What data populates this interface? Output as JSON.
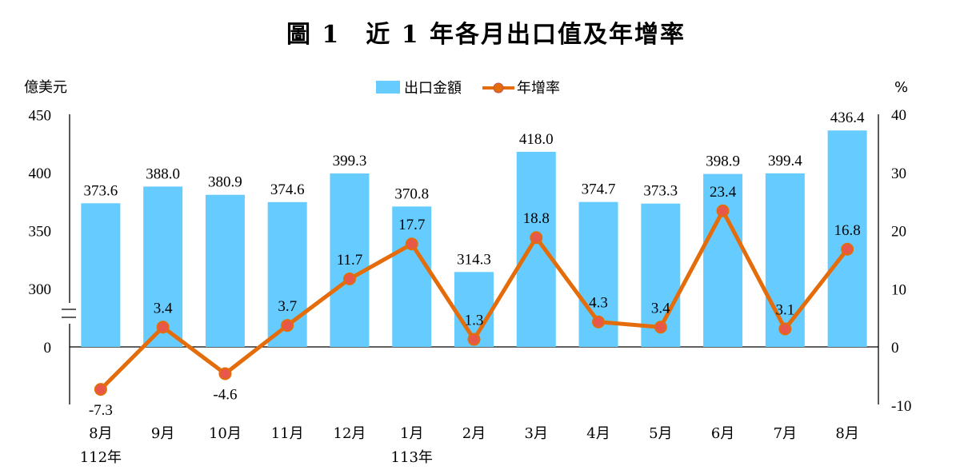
{
  "chart_data": {
    "type": "bar+line",
    "title": "圖 1　近 1 年各月出口值及年增率",
    "categories": [
      "8月",
      "9月",
      "10月",
      "11月",
      "12月",
      "1月",
      "2月",
      "3月",
      "4月",
      "5月",
      "6月",
      "7月",
      "8月"
    ],
    "category_year_labels": [
      "112年",
      "",
      "",
      "",
      "",
      "113年",
      "",
      "",
      "",
      "",
      "",
      "",
      ""
    ],
    "series": [
      {
        "name": "出口金額",
        "type": "bar",
        "axis": "left",
        "color": "#66ccff",
        "values": [
          373.6,
          388.0,
          380.9,
          374.6,
          399.3,
          370.8,
          314.3,
          418.0,
          374.7,
          373.3,
          398.9,
          399.4,
          436.4
        ],
        "value_labels": [
          "373.6",
          "388.0",
          "380.9",
          "374.6",
          "399.3",
          "370.8",
          "314.3",
          "418.0",
          "374.7",
          "373.3",
          "398.9",
          "399.4",
          "436.4"
        ]
      },
      {
        "name": "年增率",
        "type": "line",
        "axis": "right",
        "color": "#e46c0a",
        "values": [
          -7.3,
          3.4,
          -4.6,
          3.7,
          11.7,
          17.7,
          1.3,
          18.8,
          4.3,
          3.4,
          23.4,
          3.1,
          16.8
        ]
      }
    ],
    "left_axis": {
      "unit": "億美元",
      "ticks": [
        "450",
        "400",
        "350",
        "300",
        "0"
      ],
      "broken": true,
      "ylim": [
        300,
        450
      ]
    },
    "right_axis": {
      "unit": "%",
      "ticks": [
        "40",
        "30",
        "20",
        "10",
        "0",
        "-10"
      ],
      "ylim": [
        -10,
        40
      ]
    },
    "legend_position": "top-center",
    "grid": false
  }
}
